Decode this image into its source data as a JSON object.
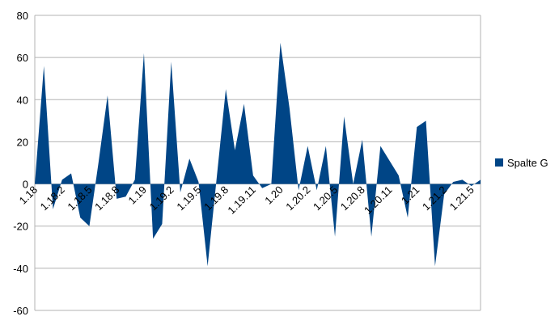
{
  "chart_data": {
    "type": "area",
    "categories": [
      "1.18",
      null,
      null,
      "1.18.2",
      null,
      null,
      "1.18.5",
      null,
      null,
      "1.18.8",
      null,
      null,
      "1.19",
      null,
      null,
      "1.19.2",
      null,
      null,
      "1.19.5",
      null,
      null,
      "1.19.8",
      null,
      null,
      "1.19.11",
      null,
      null,
      "1.20",
      null,
      null,
      "1.20.2",
      null,
      null,
      "1.20.5",
      null,
      null,
      "1.20.8",
      null,
      null,
      "1.20.11",
      null,
      null,
      "1.21",
      null,
      null,
      "1.21.2",
      null,
      null,
      "1.21.5",
      null
    ],
    "series": [
      {
        "name": "Spalte G",
        "color": "#004586",
        "values": [
          0,
          56,
          -12,
          2,
          5,
          -16,
          -20,
          10,
          42,
          -7,
          -6,
          2,
          62,
          -26,
          -19,
          58,
          -4,
          12,
          1,
          -39,
          3,
          45,
          16,
          38,
          4,
          -2,
          0,
          67,
          36,
          -3,
          18,
          -3,
          18,
          -25,
          32,
          0,
          21,
          -25,
          18,
          11,
          4,
          -16,
          27,
          30,
          -39,
          -5,
          1,
          2,
          -1,
          2
        ]
      }
    ],
    "ylim": [
      -60,
      80
    ],
    "yticks": [
      -60,
      -40,
      -20,
      0,
      20,
      40,
      60,
      80
    ],
    "grid": true,
    "legend": "right"
  }
}
